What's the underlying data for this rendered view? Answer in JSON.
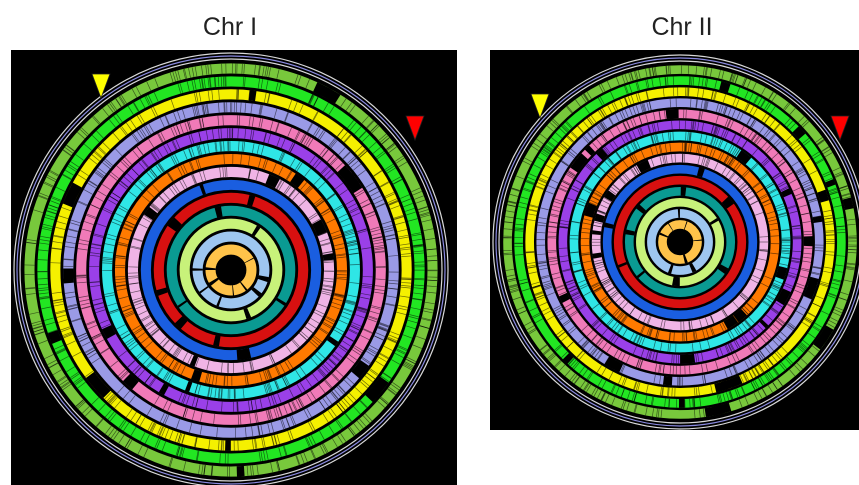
{
  "panels": [
    {
      "title": "Chr I",
      "markers": {
        "yellow": "#ffff00",
        "red": "#ff0000"
      }
    },
    {
      "title": "Chr II",
      "markers": {
        "yellow": "#ffff00",
        "red": "#ff0000"
      }
    }
  ],
  "ring_colors_inner_to_outer": [
    "#ffc34a",
    "#9ec6f0",
    "#c8f27a",
    "#0a9a92",
    "#d81010",
    "#1a5ee0",
    "#f0b4e6",
    "#ff7a00",
    "#2fe6e6",
    "#9a40e8",
    "#f07ab8",
    "#9a9ae6",
    "#f5f000",
    "#22e622",
    "#78c83c"
  ]
}
